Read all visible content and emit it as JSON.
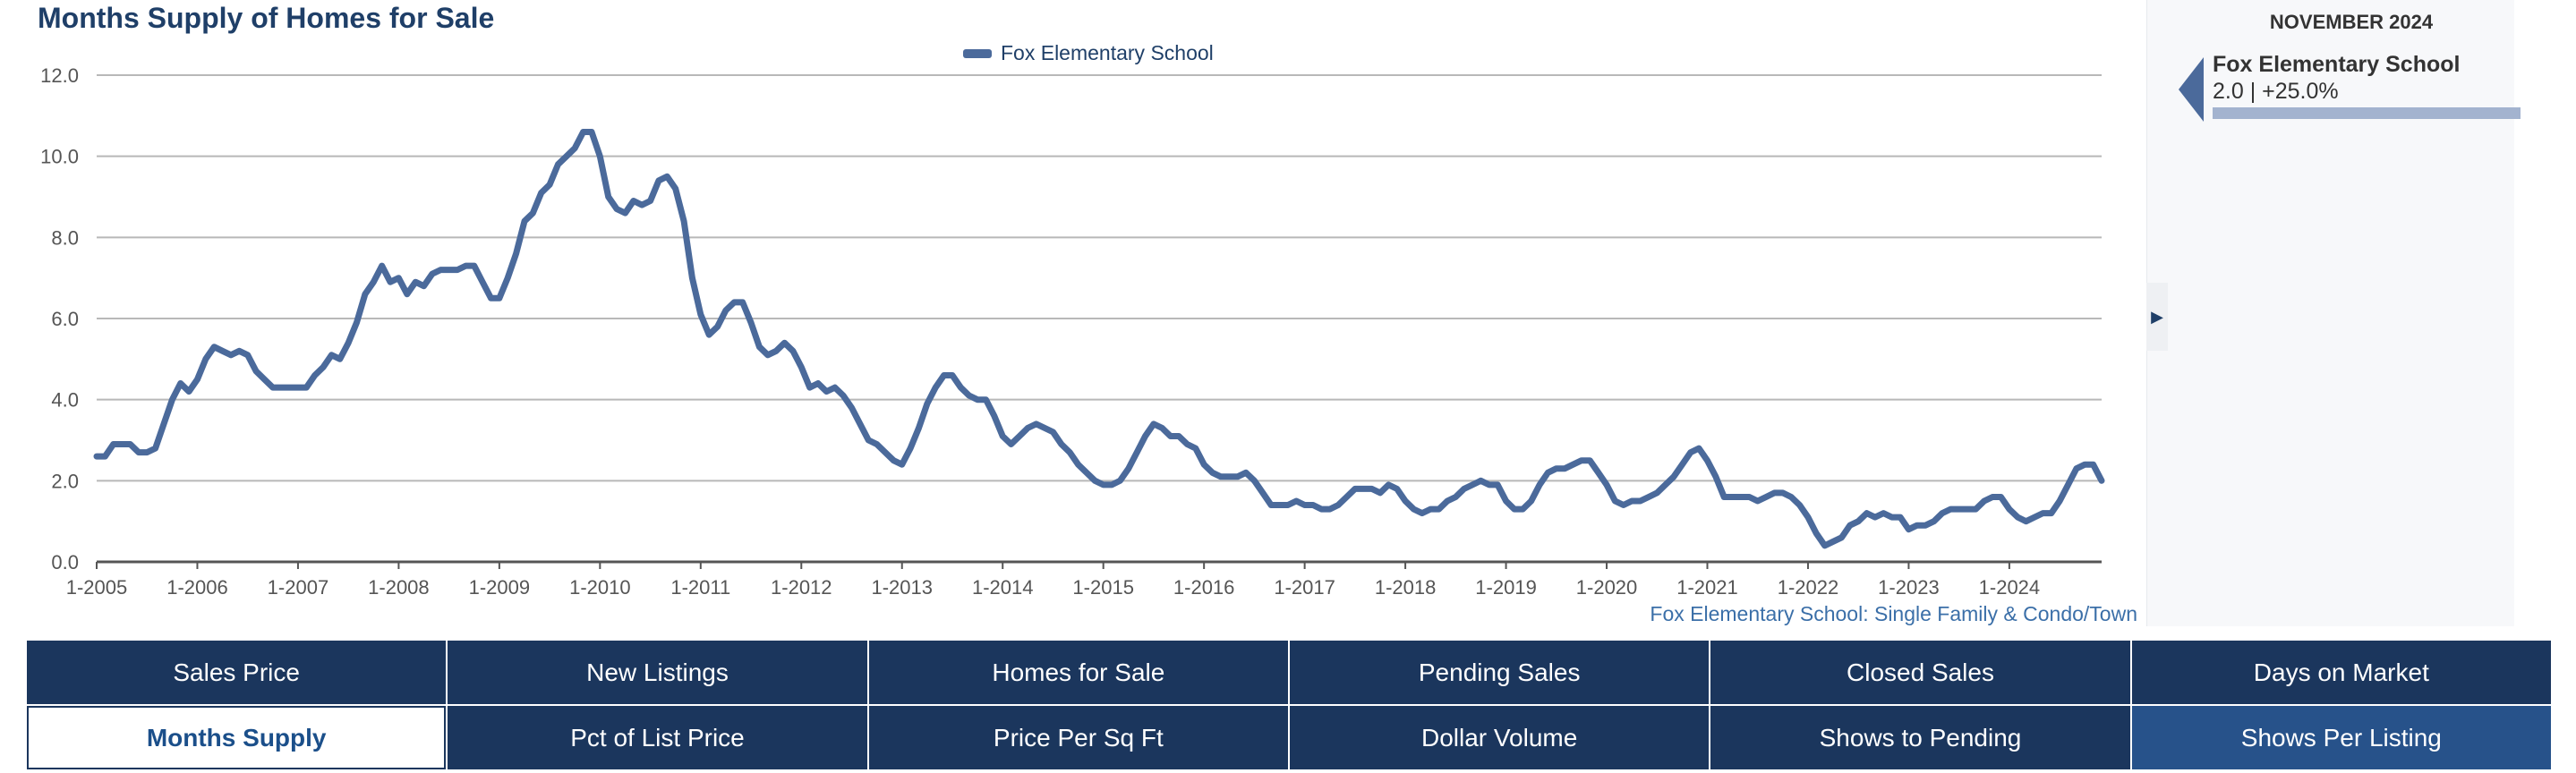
{
  "chart_data": {
    "type": "line",
    "title": "Months Supply of Homes for Sale",
    "xlabel": "",
    "ylabel": "",
    "ylim": [
      0,
      12
    ],
    "yticks": [
      "0.0",
      "2.0",
      "4.0",
      "6.0",
      "8.0",
      "10.0",
      "12.0"
    ],
    "xticks": [
      "1-2005",
      "1-2006",
      "1-2007",
      "1-2008",
      "1-2009",
      "1-2010",
      "1-2011",
      "1-2012",
      "1-2013",
      "1-2014",
      "1-2015",
      "1-2016",
      "1-2017",
      "1-2018",
      "1-2019",
      "1-2020",
      "1-2021",
      "1-2022",
      "1-2023",
      "1-2024"
    ],
    "start": "1-2005",
    "end": "11-2024",
    "series": [
      {
        "name": "Fox Elementary School",
        "color": "#4b6a9b",
        "values": [
          2.6,
          2.6,
          2.9,
          2.9,
          2.9,
          2.7,
          2.7,
          2.8,
          3.4,
          4.0,
          4.4,
          4.2,
          4.5,
          5.0,
          5.3,
          5.2,
          5.1,
          5.2,
          5.1,
          4.7,
          4.5,
          4.3,
          4.3,
          4.3,
          4.3,
          4.3,
          4.6,
          4.8,
          5.1,
          5.0,
          5.4,
          5.9,
          6.6,
          6.9,
          7.3,
          6.9,
          7.0,
          6.6,
          6.9,
          6.8,
          7.1,
          7.2,
          7.2,
          7.2,
          7.3,
          7.3,
          6.9,
          6.5,
          6.5,
          7.0,
          7.6,
          8.4,
          8.6,
          9.1,
          9.3,
          9.8,
          10.0,
          10.2,
          10.6,
          10.6,
          10.0,
          9.0,
          8.7,
          8.6,
          8.9,
          8.8,
          8.9,
          9.4,
          9.5,
          9.2,
          8.4,
          7.0,
          6.1,
          5.6,
          5.8,
          6.2,
          6.4,
          6.4,
          5.9,
          5.3,
          5.1,
          5.2,
          5.4,
          5.2,
          4.8,
          4.3,
          4.4,
          4.2,
          4.3,
          4.1,
          3.8,
          3.4,
          3.0,
          2.9,
          2.7,
          2.5,
          2.4,
          2.8,
          3.3,
          3.9,
          4.3,
          4.6,
          4.6,
          4.3,
          4.1,
          4.0,
          4.0,
          3.6,
          3.1,
          2.9,
          3.1,
          3.3,
          3.4,
          3.3,
          3.2,
          2.9,
          2.7,
          2.4,
          2.2,
          2.0,
          1.9,
          1.9,
          2.0,
          2.3,
          2.7,
          3.1,
          3.4,
          3.3,
          3.1,
          3.1,
          2.9,
          2.8,
          2.4,
          2.2,
          2.1,
          2.1,
          2.1,
          2.2,
          2.0,
          1.7,
          1.4,
          1.4,
          1.4,
          1.5,
          1.4,
          1.4,
          1.3,
          1.3,
          1.4,
          1.6,
          1.8,
          1.8,
          1.8,
          1.7,
          1.9,
          1.8,
          1.5,
          1.3,
          1.2,
          1.3,
          1.3,
          1.5,
          1.6,
          1.8,
          1.9,
          2.0,
          1.9,
          1.9,
          1.5,
          1.3,
          1.3,
          1.5,
          1.9,
          2.2,
          2.3,
          2.3,
          2.4,
          2.5,
          2.5,
          2.2,
          1.9,
          1.5,
          1.4,
          1.5,
          1.5,
          1.6,
          1.7,
          1.9,
          2.1,
          2.4,
          2.7,
          2.8,
          2.5,
          2.1,
          1.6,
          1.6,
          1.6,
          1.6,
          1.5,
          1.6,
          1.7,
          1.7,
          1.6,
          1.4,
          1.1,
          0.7,
          0.4,
          0.5,
          0.6,
          0.9,
          1.0,
          1.2,
          1.1,
          1.2,
          1.1,
          1.1,
          0.8,
          0.9,
          0.9,
          1.0,
          1.2,
          1.3,
          1.3,
          1.3,
          1.3,
          1.5,
          1.6,
          1.6,
          1.3,
          1.1,
          1.0,
          1.1,
          1.2,
          1.2,
          1.5,
          1.9,
          2.3,
          2.4,
          2.4,
          2.0
        ]
      }
    ],
    "legend": "top-center",
    "grid": true,
    "footnote": "Fox Elementary School: Single Family & Condo/Town"
  },
  "sidebar": {
    "month": "NOVEMBER 2024",
    "series_name": "Fox Elementary School",
    "series_value": "2.0 | +25.0%",
    "toggle_icon": "chevron-right-icon"
  },
  "tabs": [
    {
      "label": "Sales Price",
      "state": "normal"
    },
    {
      "label": "New Listings",
      "state": "normal"
    },
    {
      "label": "Homes for Sale",
      "state": "normal"
    },
    {
      "label": "Pending Sales",
      "state": "normal"
    },
    {
      "label": "Closed Sales",
      "state": "normal"
    },
    {
      "label": "Days on Market",
      "state": "normal"
    },
    {
      "label": "Months Supply",
      "state": "active"
    },
    {
      "label": "Pct of List Price",
      "state": "normal"
    },
    {
      "label": "Price Per Sq Ft",
      "state": "normal"
    },
    {
      "label": "Dollar Volume",
      "state": "normal"
    },
    {
      "label": "Shows to Pending",
      "state": "normal"
    },
    {
      "label": "Shows Per Listing",
      "state": "alt"
    }
  ]
}
